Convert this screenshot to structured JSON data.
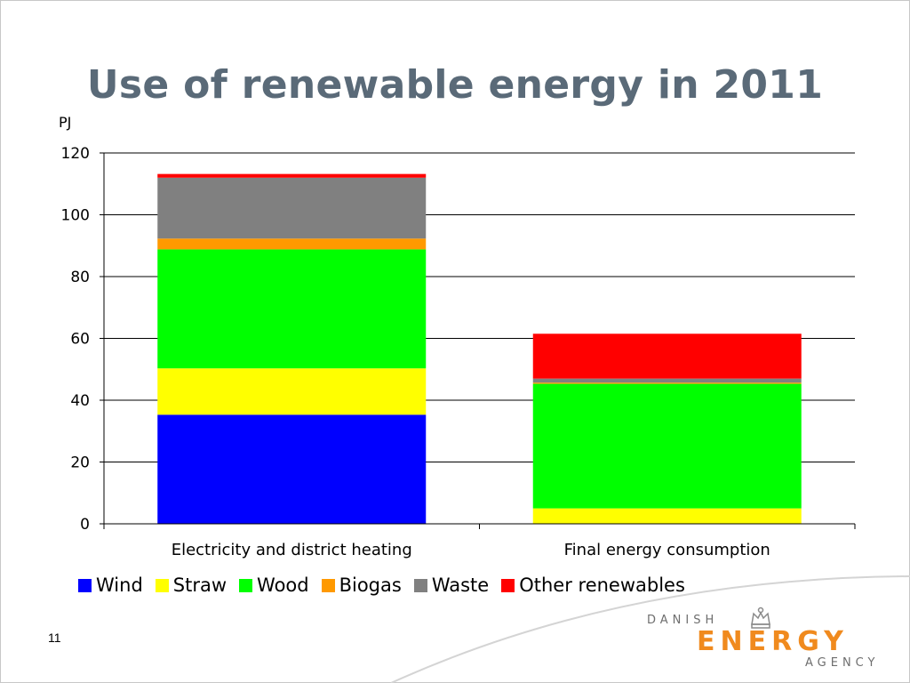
{
  "slide": {
    "title": "Use of renewable energy in 2011",
    "unit_label": "PJ",
    "page_number": "11"
  },
  "logo": {
    "line1": "DANISH",
    "line2": "ENERGY",
    "line3": "AGENCY",
    "brand_color": "#f08a1e",
    "icon": "crown-icon"
  },
  "chart_data": {
    "type": "bar",
    "stacked": true,
    "categories": [
      "Electricity and district heating",
      "Final energy consumption"
    ],
    "ylim": [
      0,
      120
    ],
    "yticks": [
      0,
      20,
      40,
      60,
      80,
      100,
      120
    ],
    "grid": true,
    "legend_position": "bottom",
    "series": [
      {
        "name": "Wind",
        "color": "#0000ff",
        "values": [
          35.3,
          0
        ]
      },
      {
        "name": "Straw",
        "color": "#ffff00",
        "values": [
          15.0,
          5.0
        ]
      },
      {
        "name": "Wood",
        "color": "#00ff00",
        "values": [
          38.5,
          40.3
        ]
      },
      {
        "name": "Biogas",
        "color": "#ff9900",
        "values": [
          3.5,
          0.4
        ]
      },
      {
        "name": "Waste",
        "color": "#808080",
        "values": [
          19.7,
          1.3
        ]
      },
      {
        "name": "Other renewables",
        "color": "#ff0000",
        "values": [
          1.2,
          14.5
        ]
      }
    ]
  }
}
